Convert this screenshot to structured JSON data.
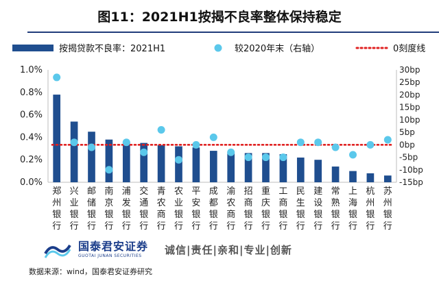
{
  "page": {
    "title": "图11：2021H1按揭不良率整体保持稳定",
    "source": "数据来源：wind，国泰君安证券研究",
    "brand": {
      "name": "国泰君安证券",
      "name_en": "GUOTAI JUNAN SECURITIES",
      "slogan": "诚信|责任|亲和|专业|创新"
    }
  },
  "colors": {
    "bar": "#1f4e8f",
    "dot": "#5bc8eb",
    "zero_line": "#e02020",
    "brand": "#1b3d8a"
  },
  "chart_data": {
    "type": "bar",
    "title": "",
    "categories": [
      "郑州银行",
      "兴业银行",
      "邮储银行",
      "南京银行",
      "浦发银行",
      "交通银行",
      "青农商行",
      "农业银行",
      "平安银行",
      "成都银行",
      "渝农商行",
      "招商银行",
      "重庆银行",
      "工商银行",
      "民生银行",
      "建设银行",
      "常熟银行",
      "上海银行",
      "杭州银行",
      "苏州银行"
    ],
    "series": [
      {
        "name": "按揭贷款不良率：2021H1",
        "type": "bar",
        "axis": "left",
        "values": [
          0.78,
          0.54,
          0.45,
          0.38,
          0.36,
          0.35,
          0.33,
          0.32,
          0.31,
          0.28,
          0.27,
          0.26,
          0.26,
          0.25,
          0.22,
          0.2,
          0.14,
          0.1,
          0.08,
          0.06
        ]
      },
      {
        "name": "较2020年末（右轴）",
        "type": "scatter",
        "axis": "right",
        "values": [
          27,
          1,
          -1,
          -10,
          1,
          -3,
          6,
          -6,
          0,
          3,
          -3,
          -5,
          -5,
          -5,
          1,
          1,
          -1,
          -4,
          0,
          2
        ]
      }
    ],
    "reference_line": {
      "name": "0刻度线",
      "value": 0,
      "axis": "right",
      "style": "dotted"
    },
    "yaxis_left": {
      "ylim": [
        0,
        1.0
      ],
      "ticks": [
        "0.0%",
        "0.2%",
        "0.4%",
        "0.6%",
        "0.8%",
        "1.0%"
      ]
    },
    "yaxis_right": {
      "ylim": [
        -15,
        30
      ],
      "ticks": [
        "-15bp",
        "-10bp",
        "-5bp",
        "0bp",
        "5bp",
        "10bp",
        "15bp",
        "20bp",
        "25bp",
        "30bp"
      ]
    },
    "legend_position": "top",
    "grid": false
  }
}
